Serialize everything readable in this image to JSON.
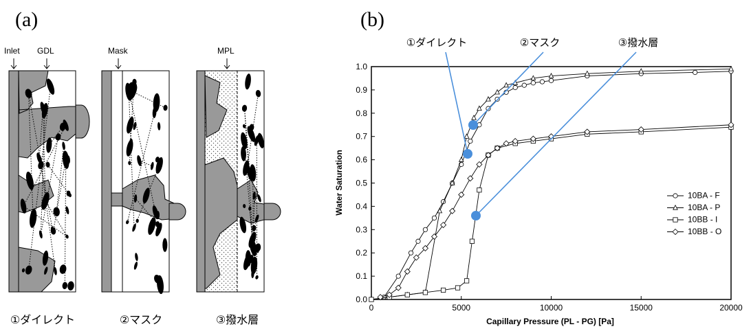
{
  "panel_a": {
    "label": "(a)",
    "annotations": [
      "Inlet",
      "GDL",
      "Mask",
      "MPL"
    ],
    "captions": [
      "①ダイレクト",
      "②マスク",
      "③撥水層"
    ]
  },
  "chart_data": {
    "type": "line",
    "label": "(b)",
    "x_label": "Capillary Pressure (PL - PG) [Pa]",
    "y_label": "Water Saturation",
    "annotations": [
      "①ダイレクト",
      "②マスク",
      "③撥水層"
    ],
    "xlim": [
      0,
      20000
    ],
    "ylim": [
      0,
      1
    ],
    "xticks": [
      0,
      5000,
      10000,
      15000,
      20000
    ],
    "yticks": [
      {
        "value": 0,
        "label": "0.0"
      },
      0.1,
      0.2,
      0.3,
      0.4,
      0.5,
      0.6,
      0.7,
      0.8,
      0.9,
      {
        "value": 1,
        "label": "1.0"
      }
    ],
    "legend": "right",
    "series": [
      {
        "name": "10BA - F",
        "marker": "circle",
        "color": "#000000",
        "x": [
          700,
          1500,
          2200,
          2600,
          3000,
          3500,
          4000,
          4500,
          5000,
          5500,
          6000,
          6500,
          7000,
          7500,
          8000,
          8500,
          9000,
          9500,
          10000,
          12000,
          15000,
          18000,
          20000
        ],
        "values": [
          0.01,
          0.1,
          0.2,
          0.25,
          0.3,
          0.35,
          0.42,
          0.5,
          0.58,
          0.68,
          0.75,
          0.82,
          0.86,
          0.89,
          0.91,
          0.92,
          0.93,
          0.935,
          0.94,
          0.96,
          0.97,
          0.975,
          0.98
        ]
      },
      {
        "name": "10BA - P",
        "marker": "triangle",
        "color": "#000000",
        "x": [
          0,
          1000,
          2000,
          3000,
          3800,
          4500,
          5000,
          5300,
          5700,
          6000,
          6500,
          7000,
          7500,
          8000,
          9000,
          10000,
          12000,
          15000,
          20000
        ],
        "values": [
          0,
          0.01,
          0.02,
          0.03,
          0.38,
          0.5,
          0.6,
          0.7,
          0.78,
          0.82,
          0.86,
          0.89,
          0.92,
          0.93,
          0.95,
          0.96,
          0.97,
          0.98,
          0.99
        ]
      },
      {
        "name": "10BB - I",
        "marker": "square",
        "color": "#000000",
        "x": [
          0,
          1000,
          2000,
          3000,
          4000,
          4800,
          5300,
          5600,
          6000,
          6500,
          7000,
          8000,
          9000,
          10000,
          12000,
          15000,
          20000
        ],
        "values": [
          0,
          0.01,
          0.02,
          0.03,
          0.04,
          0.05,
          0.08,
          0.25,
          0.47,
          0.62,
          0.65,
          0.67,
          0.68,
          0.69,
          0.71,
          0.72,
          0.74
        ]
      },
      {
        "name": "10BB - O",
        "marker": "diamond",
        "color": "#000000",
        "x": [
          500,
          1000,
          1500,
          2000,
          2500,
          3000,
          3500,
          4000,
          4500,
          5000,
          5500,
          6000,
          6500,
          7000,
          7500,
          8000,
          9000,
          10000,
          12000,
          15000,
          20000
        ],
        "values": [
          0.01,
          0.02,
          0.05,
          0.12,
          0.18,
          0.22,
          0.27,
          0.32,
          0.38,
          0.45,
          0.52,
          0.58,
          0.62,
          0.65,
          0.67,
          0.68,
          0.69,
          0.7,
          0.72,
          0.73,
          0.75
        ]
      }
    ]
  }
}
